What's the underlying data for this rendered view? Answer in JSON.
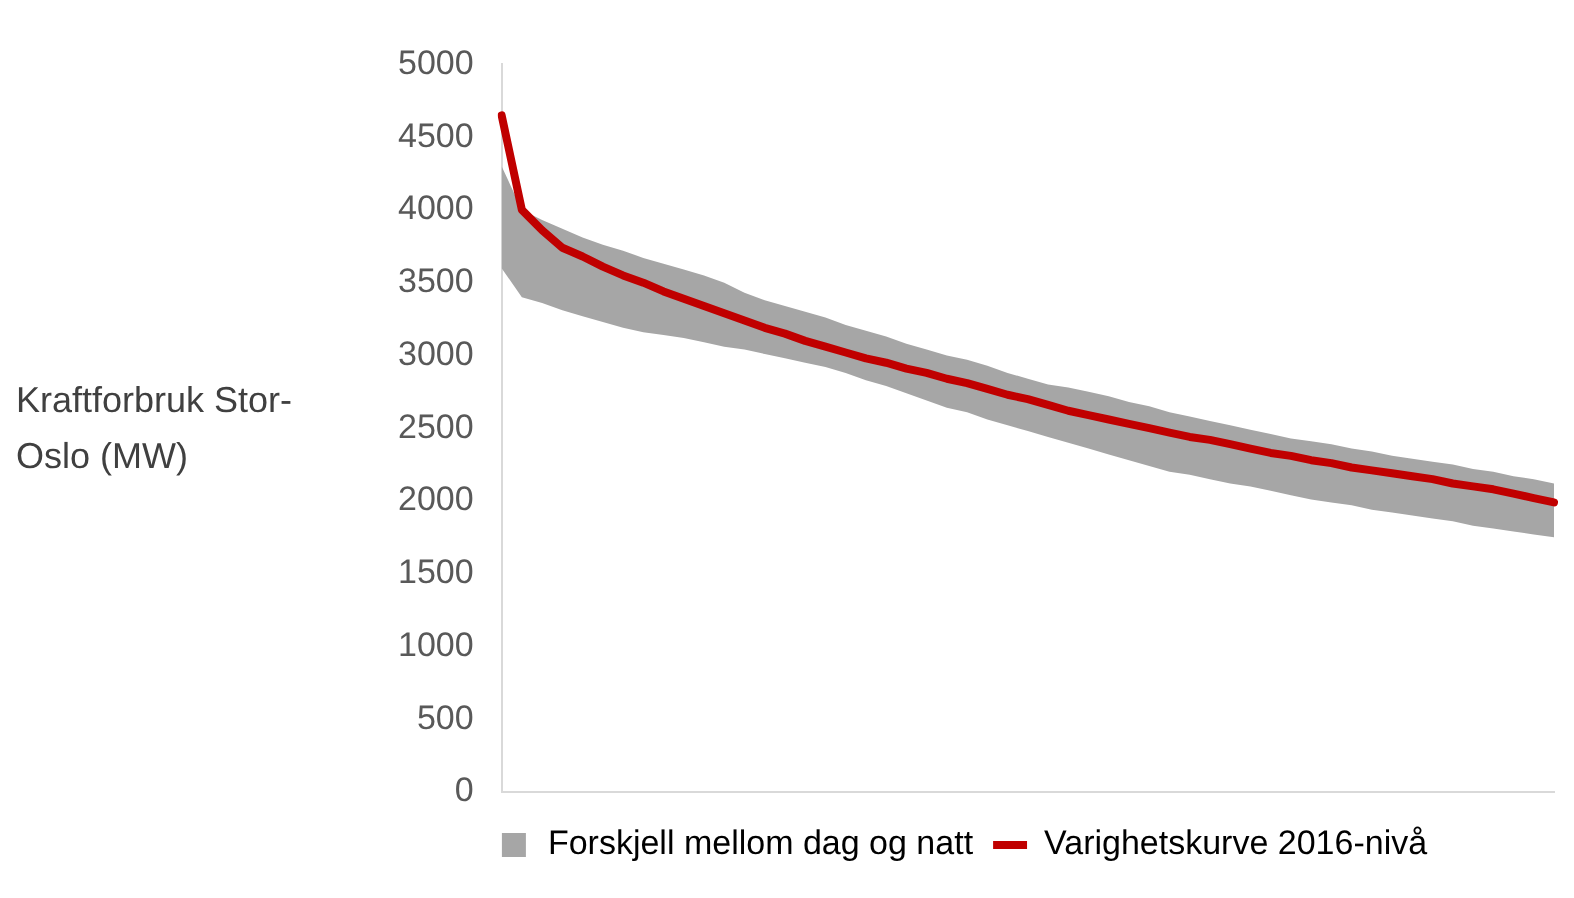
{
  "chart_data": {
    "type": "line",
    "ylabel": "Kraftforbruk Stor-Oslo (MW)",
    "categories": [
      null,
      null,
      null,
      null,
      null,
      null,
      null,
      null,
      null,
      null,
      null,
      null,
      null,
      null,
      null,
      null,
      null,
      null,
      null,
      null,
      null,
      null,
      null,
      null,
      null,
      null,
      null,
      null,
      null,
      null,
      null,
      null,
      null,
      null,
      null,
      null,
      null,
      null,
      null,
      null,
      null,
      null,
      null,
      null,
      null,
      null,
      null,
      null,
      null,
      null,
      null,
      null,
      null
    ],
    "series": [
      {
        "name": "Forskjell mellom dag og natt",
        "type": "area",
        "color": "#a6a6a6",
        "values": [
          null,
          null,
          null,
          null,
          null,
          null,
          null,
          null,
          null,
          null,
          null,
          null,
          null,
          null,
          null,
          null,
          null,
          null,
          null,
          null,
          null,
          null,
          null,
          null,
          null,
          null,
          null,
          null,
          null,
          null,
          null,
          null,
          null,
          null,
          null,
          null,
          null,
          null,
          null,
          null,
          null,
          null,
          null,
          null,
          null,
          null,
          null,
          null,
          null,
          null,
          null,
          null,
          null
        ]
      },
      {
        "name": "Varighetskurve 2016-nivå",
        "type": "line",
        "color": "#c00000",
        "values": [
          4650,
          4000,
          3860,
          3740,
          3680,
          3610,
          3550,
          3500,
          3440,
          3390,
          3340,
          3290,
          3240,
          3190,
          3150,
          3100,
          3060,
          3020,
          2980,
          2950,
          2910,
          2880,
          2840,
          2810,
          2770,
          2730,
          2700,
          2660,
          2620,
          2590,
          2560,
          2530,
          2500,
          2470,
          2440,
          2420,
          2390,
          2360,
          2330,
          2310,
          2280,
          2260,
          2230,
          2210,
          2190,
          2170,
          2150,
          2120,
          2100,
          2080,
          2050,
          2020,
          1990
        ],
        "lower": [
          3600,
          3400,
          3360,
          3310,
          3270,
          3230,
          3190,
          3160,
          3140,
          3120,
          3090,
          3060,
          3040,
          3010,
          2980,
          2950,
          2920,
          2880,
          2830,
          2790,
          2740,
          2690,
          2640,
          2610,
          2560,
          2520,
          2480,
          2440,
          2400,
          2360,
          2320,
          2280,
          2240,
          2200,
          2180,
          2150,
          2120,
          2100,
          2070,
          2040,
          2010,
          1990,
          1970,
          1940,
          1920,
          1900,
          1880,
          1860,
          1830,
          1810,
          1790,
          1770,
          1750
        ],
        "upper": [
          4300,
          4000,
          3930,
          3870,
          3810,
          3760,
          3720,
          3670,
          3630,
          3590,
          3550,
          3500,
          3430,
          3380,
          3340,
          3300,
          3260,
          3210,
          3170,
          3130,
          3080,
          3040,
          3000,
          2970,
          2930,
          2880,
          2840,
          2800,
          2780,
          2750,
          2720,
          2680,
          2650,
          2610,
          2580,
          2550,
          2520,
          2490,
          2460,
          2430,
          2410,
          2390,
          2360,
          2340,
          2310,
          2290,
          2270,
          2250,
          2220,
          2200,
          2170,
          2150,
          2120
        ]
      }
    ],
    "ylim": [
      0,
      5000
    ],
    "yticks": [
      0,
      500,
      1000,
      1500,
      2000,
      2500,
      3000,
      3500,
      4000,
      4500,
      5000
    ],
    "grid": false,
    "legend": "bottom",
    "marker": "none",
    "line_style": "solid"
  }
}
